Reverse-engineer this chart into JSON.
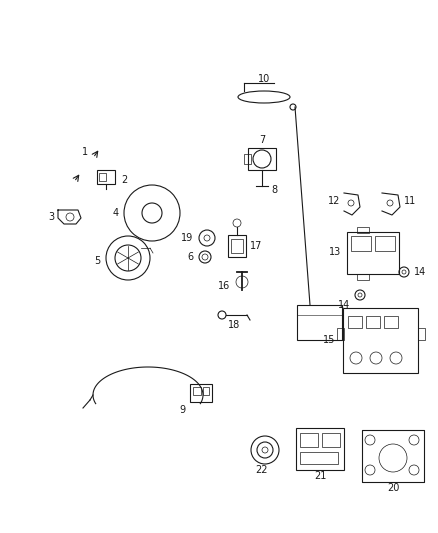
{
  "bg_color": "#ffffff",
  "fig_width": 4.38,
  "fig_height": 5.33,
  "dpi": 100,
  "dark": "#1a1a1a",
  "lw": 0.8
}
